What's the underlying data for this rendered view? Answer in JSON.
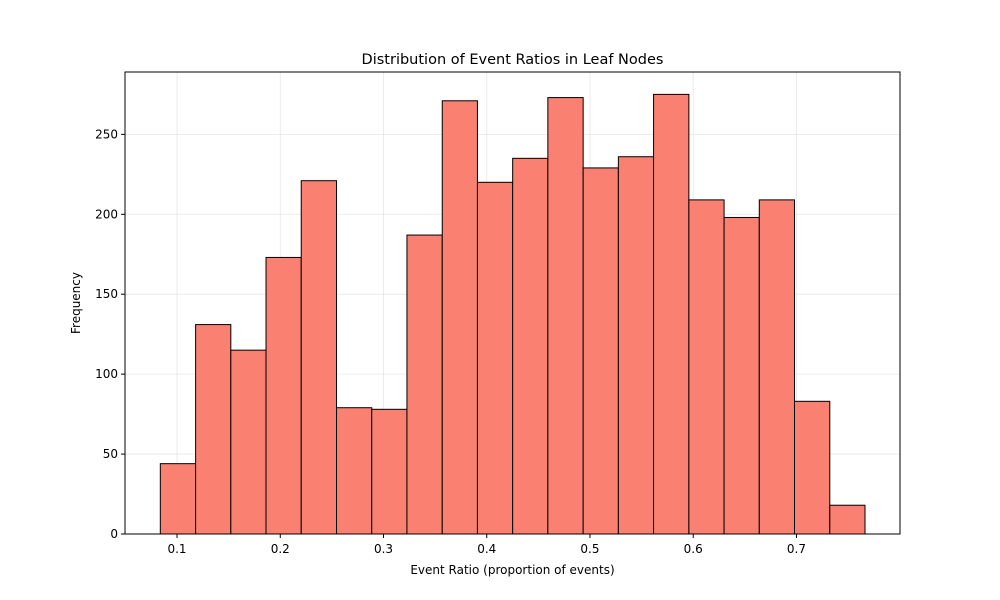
{
  "chart_data": {
    "type": "bar",
    "title": "Distribution of Event Ratios in Leaf Nodes",
    "xlabel": "Event Ratio (proportion of events)",
    "ylabel": "Frequency",
    "bar_color": "#FA8072",
    "edge_color": "#000000",
    "grid": true,
    "xlim": [
      0.0496,
      0.8003
    ],
    "ylim": [
      0,
      289
    ],
    "xticks": [
      0.1,
      0.2,
      0.3,
      0.4,
      0.5,
      0.6,
      0.7
    ],
    "yticks": [
      0,
      50,
      100,
      150,
      200,
      250
    ],
    "bin_edges": [
      0.0838,
      0.118,
      0.1521,
      0.1862,
      0.2203,
      0.2545,
      0.2886,
      0.3227,
      0.3569,
      0.391,
      0.4251,
      0.4592,
      0.4934,
      0.5275,
      0.5616,
      0.5958,
      0.6299,
      0.664,
      0.6981,
      0.7323,
      0.7664
    ],
    "values": [
      44,
      131,
      115,
      173,
      221,
      79,
      78,
      187,
      271,
      220,
      235,
      273,
      229,
      236,
      275,
      209,
      198,
      209,
      83,
      18
    ]
  }
}
